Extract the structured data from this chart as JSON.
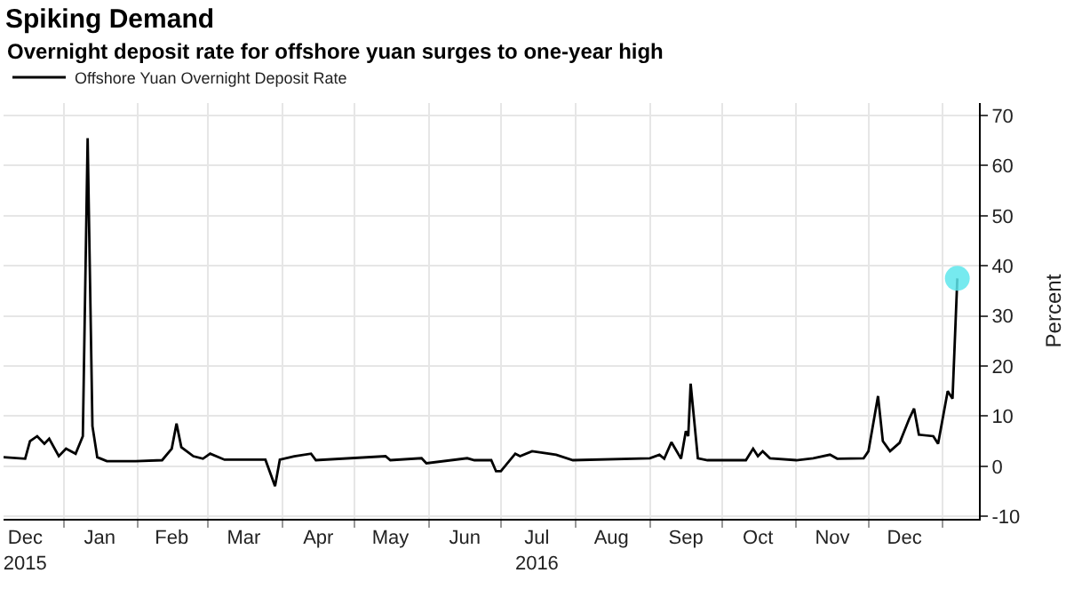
{
  "chart_data": {
    "type": "line",
    "title": "Spiking Demand",
    "subtitle": "Overnight deposit rate for offshore yuan surges to one-year high",
    "ylabel": "Percent",
    "xlim": [
      "2015-12-07",
      "2017-01-16"
    ],
    "ylim": [
      -10.5,
      72.5
    ],
    "yticks": [
      -10,
      0,
      10,
      20,
      30,
      40,
      50,
      60,
      70
    ],
    "xticks": [
      {
        "value": "2015-12-16",
        "label": "Dec\n2015"
      },
      {
        "value": "2016-01-16",
        "label": "Jan"
      },
      {
        "value": "2016-02-15",
        "label": "Feb"
      },
      {
        "value": "2016-03-16",
        "label": "Mar"
      },
      {
        "value": "2016-04-16",
        "label": "Apr"
      },
      {
        "value": "2016-05-16",
        "label": "May"
      },
      {
        "value": "2016-06-16",
        "label": "Jun"
      },
      {
        "value": "2016-07-16",
        "label": "Jul\n2016"
      },
      {
        "value": "2016-08-16",
        "label": "Aug"
      },
      {
        "value": "2016-09-16",
        "label": "Sep"
      },
      {
        "value": "2016-10-16",
        "label": "Oct"
      },
      {
        "value": "2016-11-16",
        "label": "Nov"
      },
      {
        "value": "2016-12-16",
        "label": "Dec"
      }
    ],
    "grid": true,
    "legend": "top left",
    "line_style": "solid",
    "series": [
      {
        "name": "Offshore Yuan Overnight Deposit Rate",
        "color": "#000000",
        "marker": "none",
        "x": [
          "2015-12-07",
          "2015-12-16",
          "2015-12-18",
          "2015-12-21",
          "2015-12-24",
          "2015-12-26",
          "2015-12-30",
          "2016-01-02",
          "2016-01-06",
          "2016-01-09",
          "2016-01-11",
          "2016-01-13",
          "2016-01-15",
          "2016-01-19",
          "2016-01-31",
          "2016-02-11",
          "2016-02-15",
          "2016-02-17",
          "2016-02-19",
          "2016-02-24",
          "2016-02-28",
          "2016-03-02",
          "2016-03-08",
          "2016-03-25",
          "2016-03-29",
          "2016-03-31",
          "2016-04-06",
          "2016-04-13",
          "2016-04-15",
          "2016-05-14",
          "2016-05-16",
          "2016-05-29",
          "2016-05-31",
          "2016-06-17",
          "2016-06-20",
          "2016-06-27",
          "2016-06-29",
          "2016-07-01",
          "2016-07-07",
          "2016-07-09",
          "2016-07-14",
          "2016-07-24",
          "2016-07-31",
          "2016-09-01",
          "2016-09-05",
          "2016-09-07",
          "2016-09-10",
          "2016-09-14",
          "2016-09-16",
          "2016-09-17",
          "2016-09-18",
          "2016-09-21",
          "2016-09-25",
          "2016-10-11",
          "2016-10-14",
          "2016-10-16",
          "2016-10-18",
          "2016-10-21",
          "2016-11-01",
          "2016-11-08",
          "2016-11-15",
          "2016-11-18",
          "2016-11-29",
          "2016-12-01",
          "2016-12-05",
          "2016-12-07",
          "2016-12-10",
          "2016-12-14",
          "2016-12-18",
          "2016-12-20",
          "2016-12-22",
          "2016-12-28",
          "2016-12-30",
          "2017-01-03",
          "2017-01-05",
          "2017-01-07"
        ],
        "values": [
          1.8,
          1.5,
          5,
          6,
          4.5,
          5.5,
          2,
          3.5,
          2.5,
          6,
          65.5,
          8,
          1.8,
          1,
          1,
          1.2,
          3.5,
          8.5,
          3.8,
          2,
          1.5,
          2.5,
          1.3,
          1.3,
          -4,
          1.3,
          2,
          2.5,
          1.2,
          2,
          1.2,
          1.6,
          0.6,
          1.6,
          1.2,
          1.2,
          -1,
          -1,
          2.5,
          2,
          3,
          2.3,
          1.2,
          1.6,
          2.3,
          1.5,
          4.8,
          1.5,
          7,
          6,
          16.5,
          1.6,
          1.2,
          1.2,
          3.5,
          2,
          3,
          1.6,
          1.2,
          1.6,
          2.3,
          1.5,
          1.6,
          3,
          14,
          5,
          3,
          4.7,
          9.5,
          11.5,
          6.3,
          6,
          4.5,
          15,
          13.5,
          37.5
        ]
      },
      {
        "color": "#5ee6ec",
        "type": "scatter",
        "marker": "circle",
        "x": [
          "2017-01-07"
        ],
        "values": [
          37.5
        ]
      }
    ]
  }
}
